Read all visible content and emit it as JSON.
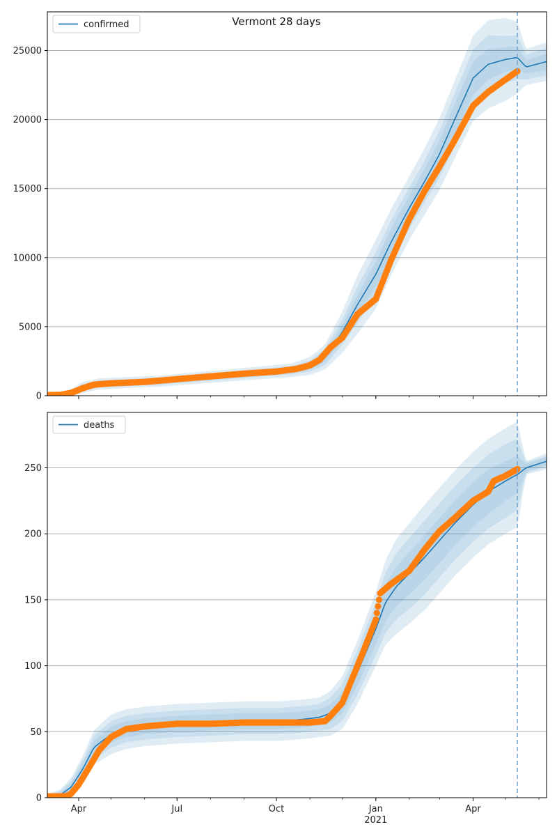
{
  "title": "Vermont 28 days",
  "colors": {
    "model": "#1f77b4",
    "observed": "#ff7f0e",
    "band": "#1f77b4",
    "grid": "#b0b0b0",
    "cutoff": "#7fa9cf"
  },
  "x_axis": {
    "ticks": [
      {
        "date": "2020-04-01",
        "label": "Apr"
      },
      {
        "date": "2020-07-01",
        "label": "Jul"
      },
      {
        "date": "2020-10-01",
        "label": "Oct"
      },
      {
        "date": "2021-01-01",
        "label": "Jan",
        "sub": "2021"
      },
      {
        "date": "2021-04-01",
        "label": "Apr"
      }
    ],
    "range": [
      "2020-03-03",
      "2021-06-08"
    ],
    "forecast_start": "2021-05-12"
  },
  "chart_data": [
    {
      "type": "line",
      "legend": "confirmed",
      "legend_position": "top-left",
      "grid": "y",
      "ylim": [
        0,
        27800
      ],
      "yticks": [
        0,
        5000,
        10000,
        15000,
        20000,
        25000
      ],
      "model": {
        "x": [
          "2020-03-03",
          "2020-03-15",
          "2020-03-25",
          "2020-04-05",
          "2020-04-20",
          "2020-05-15",
          "2020-06-15",
          "2020-07-15",
          "2020-08-15",
          "2020-09-15",
          "2020-10-15",
          "2020-11-01",
          "2020-11-15",
          "2020-12-01",
          "2020-12-15",
          "2021-01-01",
          "2021-01-15",
          "2021-02-01",
          "2021-02-15",
          "2021-03-01",
          "2021-03-15",
          "2021-04-01",
          "2021-04-15",
          "2021-05-01",
          "2021-05-12",
          "2021-05-20",
          "2021-06-08"
        ],
        "y": [
          50,
          80,
          250,
          600,
          850,
          950,
          1050,
          1250,
          1450,
          1650,
          1850,
          2150,
          2800,
          4600,
          6600,
          8800,
          11100,
          13600,
          15500,
          17500,
          20000,
          23000,
          24000,
          24350,
          24500,
          23800,
          24200
        ],
        "band_half_widths": [
          [
            20,
            40,
            80,
            150,
            150,
            150,
            150,
            160,
            170,
            180,
            200,
            250,
            350,
            500,
            700,
            900,
            1000,
            900,
            900,
            1000,
            1100,
            1200,
            1100,
            900,
            800,
            500,
            600
          ],
          [
            40,
            80,
            150,
            250,
            250,
            250,
            250,
            260,
            270,
            280,
            300,
            400,
            600,
            900,
            1300,
            1600,
            1600,
            1500,
            1500,
            1700,
            1900,
            2100,
            2100,
            1700,
            1600,
            900,
            1000
          ],
          [
            60,
            120,
            250,
            400,
            400,
            400,
            400,
            420,
            440,
            460,
            500,
            650,
            900,
            1500,
            2100,
            2500,
            2400,
            2300,
            2400,
            2600,
            2800,
            3100,
            3200,
            3000,
            2600,
            1300,
            1400
          ]
        ]
      },
      "observed": {
        "x": [
          "2020-03-03",
          "2020-03-15",
          "2020-03-25",
          "2020-04-05",
          "2020-04-15",
          "2020-05-01",
          "2020-06-01",
          "2020-07-01",
          "2020-08-01",
          "2020-09-01",
          "2020-10-01",
          "2020-10-20",
          "2020-11-01",
          "2020-11-10",
          "2020-11-20",
          "2020-12-01",
          "2020-12-15",
          "2021-01-01",
          "2021-01-15",
          "2021-02-01",
          "2021-02-15",
          "2021-03-01",
          "2021-03-15",
          "2021-04-01",
          "2021-04-15",
          "2021-05-01",
          "2021-05-12"
        ],
        "y": [
          40,
          60,
          200,
          550,
          800,
          900,
          1000,
          1200,
          1400,
          1600,
          1750,
          1950,
          2200,
          2600,
          3500,
          4200,
          5900,
          7000,
          9800,
          12800,
          14800,
          16600,
          18500,
          21000,
          22000,
          22900,
          23500
        ]
      }
    },
    {
      "type": "line",
      "legend": "deaths",
      "legend_position": "top-left",
      "grid": "y",
      "ylim": [
        0,
        292
      ],
      "yticks": [
        0,
        50,
        100,
        150,
        200,
        250
      ],
      "model": {
        "x": [
          "2020-03-03",
          "2020-03-15",
          "2020-03-25",
          "2020-04-05",
          "2020-04-15",
          "2020-05-01",
          "2020-05-15",
          "2020-06-01",
          "2020-07-01",
          "2020-08-01",
          "2020-09-01",
          "2020-10-01",
          "2020-10-20",
          "2020-11-01",
          "2020-11-10",
          "2020-11-20",
          "2020-12-01",
          "2020-12-15",
          "2021-01-01",
          "2021-01-10",
          "2021-01-20",
          "2021-02-01",
          "2021-02-15",
          "2021-03-01",
          "2021-03-15",
          "2021-04-01",
          "2021-04-15",
          "2021-05-01",
          "2021-05-12",
          "2021-05-20",
          "2021-06-08"
        ],
        "y": [
          1,
          2,
          8,
          22,
          38,
          48,
          52,
          54,
          56,
          57,
          58,
          58,
          59,
          60,
          61,
          64,
          72,
          95,
          128,
          148,
          160,
          170,
          182,
          195,
          208,
          222,
          232,
          240,
          245,
          250,
          255
        ],
        "band_half_widths": [
          [
            1,
            2,
            3,
            4,
            5,
            6,
            6,
            6,
            6,
            6,
            6,
            6,
            6,
            6,
            6,
            7,
            8,
            10,
            12,
            14,
            15,
            16,
            17,
            17,
            17,
            17,
            17,
            15,
            14,
            3,
            3
          ],
          [
            1,
            3,
            5,
            7,
            9,
            10,
            10,
            10,
            10,
            10,
            10,
            10,
            10,
            10,
            10,
            12,
            14,
            17,
            20,
            23,
            25,
            27,
            28,
            28,
            28,
            28,
            28,
            28,
            27,
            4,
            4
          ],
          [
            2,
            4,
            7,
            10,
            13,
            15,
            15,
            15,
            15,
            15,
            15,
            15,
            15,
            15,
            15,
            17,
            20,
            24,
            28,
            32,
            36,
            38,
            40,
            40,
            40,
            40,
            40,
            40,
            40,
            5,
            6
          ]
        ]
      },
      "observed": {
        "x": [
          "2020-03-03",
          "2020-03-15",
          "2020-03-20",
          "2020-03-25",
          "2020-04-01",
          "2020-04-10",
          "2020-04-20",
          "2020-05-01",
          "2020-05-15",
          "2020-06-01",
          "2020-06-15",
          "2020-07-01",
          "2020-08-01",
          "2020-09-01",
          "2020-10-01",
          "2020-10-15",
          "2020-11-01",
          "2020-11-15",
          "2020-11-20",
          "2020-12-01",
          "2020-12-10",
          "2020-12-20",
          "2021-01-01",
          "2021-01-05",
          "2021-01-15",
          "2021-02-01",
          "2021-02-15",
          "2021-03-01",
          "2021-03-15",
          "2021-04-01",
          "2021-04-15",
          "2021-04-20",
          "2021-05-01",
          "2021-05-12"
        ],
        "y": [
          1,
          1,
          1,
          3,
          10,
          22,
          36,
          46,
          52,
          54,
          55,
          56,
          56,
          57,
          57,
          57,
          57,
          58,
          62,
          72,
          90,
          110,
          135,
          155,
          162,
          172,
          188,
          202,
          212,
          225,
          232,
          240,
          244,
          249
        ]
      }
    }
  ]
}
